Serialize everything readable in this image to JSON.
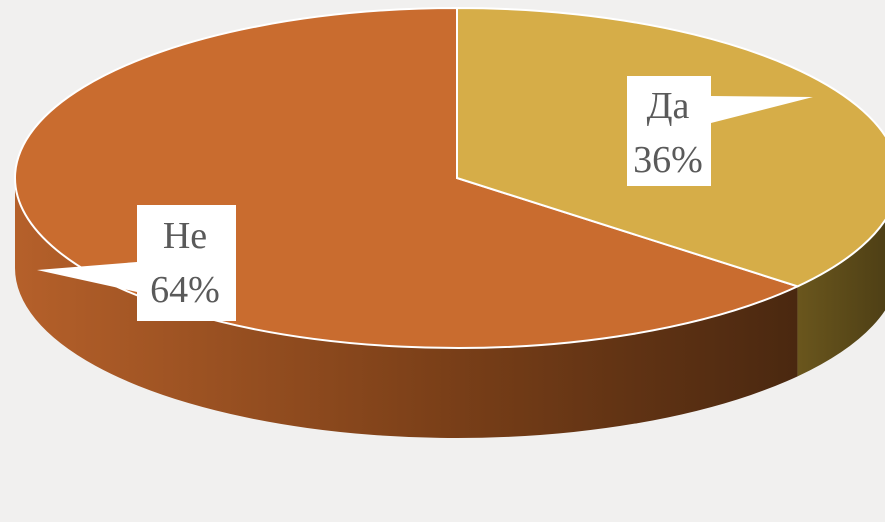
{
  "chart_data": {
    "type": "pie",
    "style": "3d",
    "slices": [
      {
        "label": "Да",
        "value": 36,
        "display": "36%",
        "color": "#d6ad48"
      },
      {
        "label": "Не",
        "value": 64,
        "display": "64%",
        "color": "#c96c2f"
      }
    ],
    "colors": {
      "background": "#f1f0ef",
      "side_dark": "#4a2a10",
      "side_light": "#a85a23",
      "side_yellow": "#5a4a1c"
    }
  }
}
